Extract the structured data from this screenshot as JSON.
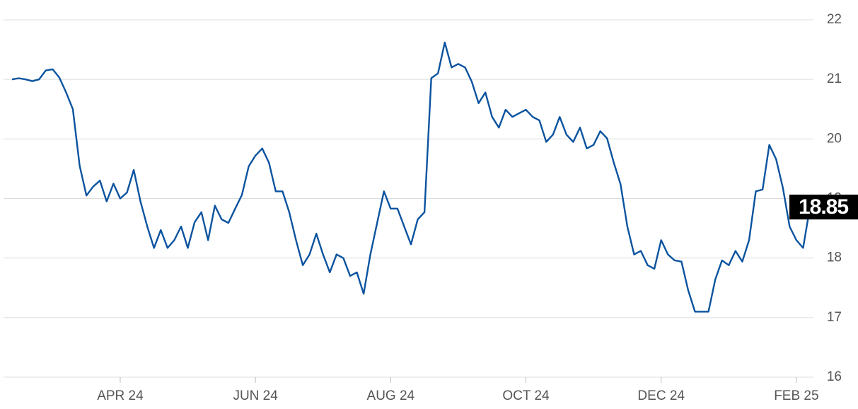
{
  "chart_data": {
    "type": "line",
    "color": "#0b539f",
    "grid": true,
    "categories": [
      null,
      null,
      null,
      null,
      null,
      null,
      null,
      null,
      null,
      null,
      null,
      null,
      null,
      null,
      null,
      null,
      "APR 24",
      null,
      null,
      null,
      null,
      null,
      null,
      null,
      null,
      null,
      null,
      null,
      null,
      null,
      null,
      null,
      null,
      null,
      null,
      null,
      "JUN 24",
      null,
      null,
      null,
      null,
      null,
      null,
      null,
      null,
      null,
      null,
      null,
      null,
      null,
      null,
      null,
      null,
      null,
      null,
      null,
      "AUG 24",
      null,
      null,
      null,
      null,
      null,
      null,
      null,
      null,
      null,
      null,
      null,
      null,
      null,
      null,
      null,
      null,
      null,
      null,
      null,
      "OCT 24",
      null,
      null,
      null,
      null,
      null,
      null,
      null,
      null,
      null,
      null,
      null,
      null,
      null,
      null,
      null,
      null,
      null,
      null,
      null,
      "DEC 24",
      null,
      null,
      null,
      null,
      null,
      null,
      null,
      null,
      null,
      null,
      null,
      null,
      null,
      null,
      null,
      null,
      null,
      null,
      null,
      "FEB 25",
      null,
      null
    ],
    "values": [
      21.0,
      21.02,
      21.0,
      20.97,
      21.0,
      21.15,
      21.17,
      21.03,
      20.78,
      20.5,
      19.55,
      19.05,
      19.2,
      19.3,
      18.95,
      19.25,
      19.0,
      19.1,
      19.48,
      18.95,
      18.53,
      18.17,
      18.47,
      18.17,
      18.3,
      18.53,
      18.17,
      18.6,
      18.77,
      18.3,
      18.88,
      18.65,
      18.59,
      18.83,
      19.06,
      19.54,
      19.72,
      19.84,
      19.6,
      19.12,
      19.12,
      18.77,
      18.3,
      17.88,
      18.06,
      18.41,
      18.06,
      17.76,
      18.06,
      18.0,
      17.7,
      17.76,
      17.4,
      18.06,
      18.59,
      19.12,
      18.83,
      18.83,
      18.53,
      18.23,
      18.65,
      18.77,
      21.02,
      21.1,
      21.62,
      21.2,
      21.26,
      21.2,
      20.96,
      20.6,
      20.78,
      20.37,
      20.19,
      20.49,
      20.37,
      20.43,
      20.49,
      20.37,
      20.31,
      19.95,
      20.07,
      20.37,
      20.07,
      19.95,
      20.19,
      19.84,
      19.9,
      20.13,
      20.01,
      19.6,
      19.24,
      18.53,
      18.06,
      18.12,
      17.88,
      17.82,
      18.3,
      18.06,
      17.96,
      17.94,
      17.46,
      17.1,
      17.1,
      17.1,
      17.64,
      17.96,
      17.88,
      18.12,
      17.94,
      18.3,
      19.12,
      19.15,
      19.9,
      19.66,
      19.18,
      18.53,
      18.3,
      18.17,
      18.85
    ],
    "ylim": [
      16,
      22
    ],
    "yticks": [
      16,
      17,
      18,
      19,
      20,
      21,
      22
    ]
  }
}
